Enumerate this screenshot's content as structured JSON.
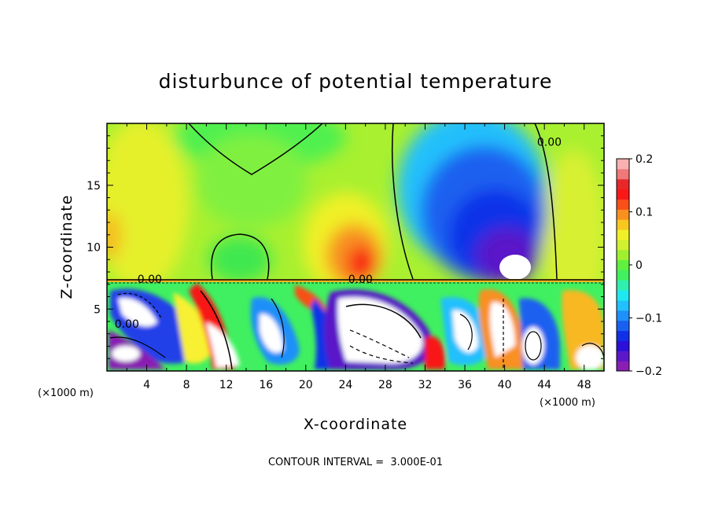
{
  "chart_data": {
    "type": "heatmap",
    "title": "disturbunce of potential temperature",
    "xlabel": "X-coordinate",
    "ylabel": "Z-coordinate",
    "x_unit": "(×1000 m)",
    "x_unit_right": "(×1000 m)",
    "xlim": [
      0,
      50
    ],
    "ylim": [
      0,
      20
    ],
    "x_ticks": [
      4,
      8,
      12,
      16,
      20,
      24,
      28,
      32,
      36,
      40,
      44,
      48
    ],
    "x_tick_labels": [
      "4",
      "8",
      "12",
      "16",
      "20",
      "24",
      "28",
      "32",
      "36",
      "40",
      "44",
      "48"
    ],
    "y_ticks": [
      5,
      10,
      15
    ],
    "y_tick_labels": [
      "5",
      "10",
      "15"
    ],
    "colorbar": {
      "range": [
        -0.2,
        0.2
      ],
      "ticks": [
        0.2,
        0.1,
        0,
        -0.1,
        -0.2
      ],
      "tick_labels": [
        "0.2",
        "0.1",
        "0",
        "−0.1",
        "−0.2"
      ],
      "colors": [
        "#8a1fb3",
        "#5a18c8",
        "#2a10d8",
        "#1030e8",
        "#1a60f0",
        "#1e90f8",
        "#22c0fc",
        "#20e8f0",
        "#30f0b0",
        "#40f060",
        "#60f040",
        "#a0f030",
        "#d0f030",
        "#f0f028",
        "#f8c820",
        "#f89020",
        "#f85018",
        "#f81818",
        "#e82828",
        "#f07878",
        "#f8b0b0"
      ]
    },
    "contour_labels": [
      {
        "text": "0.00",
        "x": 4.3,
        "z": 7.1
      },
      {
        "text": "0.00",
        "x": 25.5,
        "z": 7.1
      },
      {
        "text": "0.00",
        "x": 44.5,
        "z": 18.2
      },
      {
        "text": "0.00",
        "x": 2.0,
        "z": 3.5
      }
    ],
    "annotation": "CONTOUR INTERVAL =  3.000E-01"
  }
}
